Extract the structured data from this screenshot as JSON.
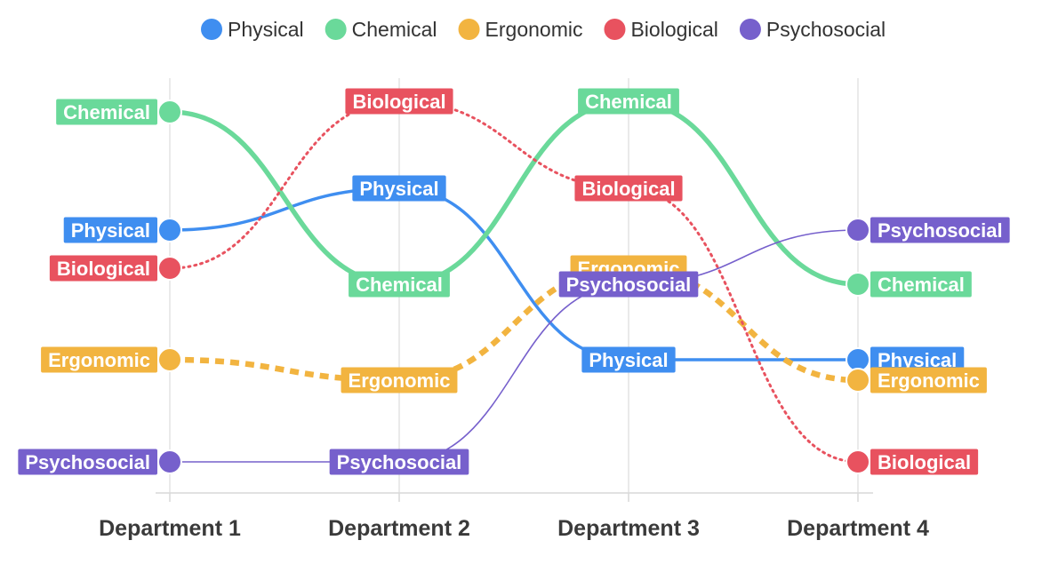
{
  "chart_data": {
    "type": "line",
    "title": "",
    "xlabel": "",
    "ylabel": "",
    "categories": [
      "Department 1",
      "Department 2",
      "Department 3",
      "Department 4"
    ],
    "legend_position": "top-center",
    "grid": "vertical",
    "series": [
      {
        "name": "Physical",
        "color": "#3f8ef0",
        "style": "solid",
        "values": [
          4,
          3,
          7,
          7
        ],
        "label": "Physical"
      },
      {
        "name": "Chemical",
        "color": "#6ad99a",
        "style": "solid-thick",
        "values": [
          2,
          6,
          1,
          6
        ],
        "label": "Chemical"
      },
      {
        "name": "Ergonomic",
        "color": "#f2b440",
        "style": "dashed",
        "values": [
          7,
          8,
          5,
          8
        ],
        "label": "Ergonomic"
      },
      {
        "name": "Biological",
        "color": "#e8525f",
        "style": "dotted",
        "values": [
          5,
          1,
          3,
          9
        ],
        "label": "Biological"
      },
      {
        "name": "Psychosocial",
        "color": "#7660cc",
        "style": "solid-thin",
        "values": [
          9,
          9,
          6,
          4
        ],
        "label": "Psychosocial"
      }
    ]
  }
}
